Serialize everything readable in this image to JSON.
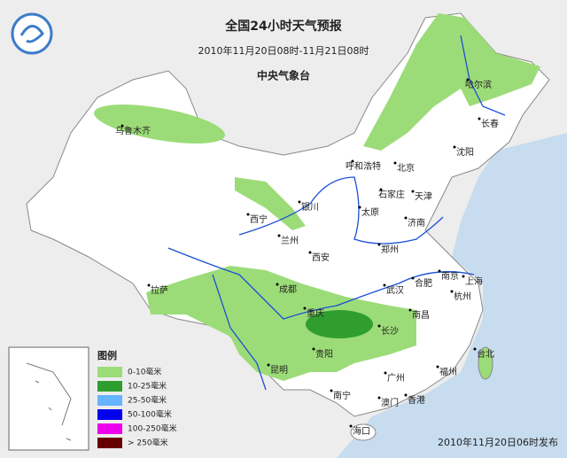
{
  "header": {
    "title": "全国24小时天气预报",
    "subtitle": "2010年11月20日08时-11月21日08时",
    "agency": "中央气象台"
  },
  "cities": [
    "乌鲁木齐",
    "哈尔滨",
    "长春",
    "沈阳",
    "呼和浩特",
    "北京",
    "天津",
    "石家庄",
    "太原",
    "银川",
    "西宁",
    "兰州",
    "济南",
    "郑州",
    "西安",
    "合肥",
    "南京",
    "上海",
    "杭州",
    "拉萨",
    "成都",
    "武汉",
    "重庆",
    "长沙",
    "南昌",
    "贵阳",
    "昆明",
    "福州",
    "台北",
    "广州",
    "南宁",
    "澳门",
    "香港",
    "海口"
  ],
  "legend": {
    "title": "图例",
    "items": [
      {
        "label": "0-10毫米",
        "color": "#9cdc78"
      },
      {
        "label": "10-25毫米",
        "color": "#2f9e2f"
      },
      {
        "label": "25-50毫米",
        "color": "#66b3ff"
      },
      {
        "label": "50-100毫米",
        "color": "#0000ee"
      },
      {
        "label": "100-250毫米",
        "color": "#ee00ee"
      },
      {
        "label": "> 250毫米",
        "color": "#660000"
      }
    ]
  },
  "footer": "2010年11月20日06时发布"
}
